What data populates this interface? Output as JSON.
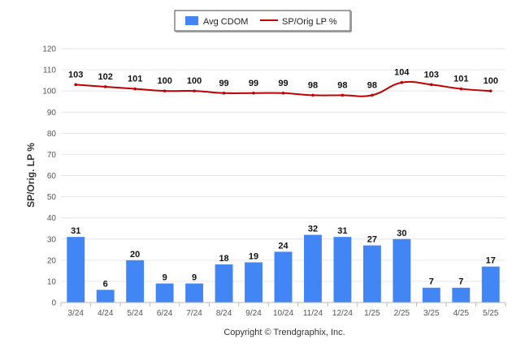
{
  "chart_data": {
    "type": "bar",
    "categories": [
      "3/24",
      "4/24",
      "5/24",
      "6/24",
      "7/24",
      "8/24",
      "9/24",
      "10/24",
      "11/24",
      "12/24",
      "1/25",
      "2/25",
      "3/25",
      "4/25",
      "5/25"
    ],
    "series": [
      {
        "name": "Avg CDOM",
        "type": "bar",
        "color": "#4285f4",
        "values": [
          31,
          6,
          20,
          9,
          9,
          18,
          19,
          24,
          32,
          31,
          27,
          30,
          7,
          7,
          17
        ]
      },
      {
        "name": "SP/Orig LP %",
        "type": "line",
        "color": "#c00000",
        "values": [
          103,
          102,
          101,
          100,
          100,
          99,
          99,
          99,
          98,
          98,
          98,
          104,
          103,
          101,
          100
        ]
      }
    ],
    "title": "",
    "xlabel": "",
    "ylabel": "SP/Orig. LP %",
    "ylim": [
      0,
      120
    ],
    "yticks": [
      0,
      10,
      20,
      30,
      40,
      50,
      60,
      70,
      80,
      90,
      100,
      110,
      120
    ],
    "grid": true,
    "legend": "top-center"
  },
  "footer": {
    "copyright": "Copyright © Trendgraphix, Inc."
  }
}
